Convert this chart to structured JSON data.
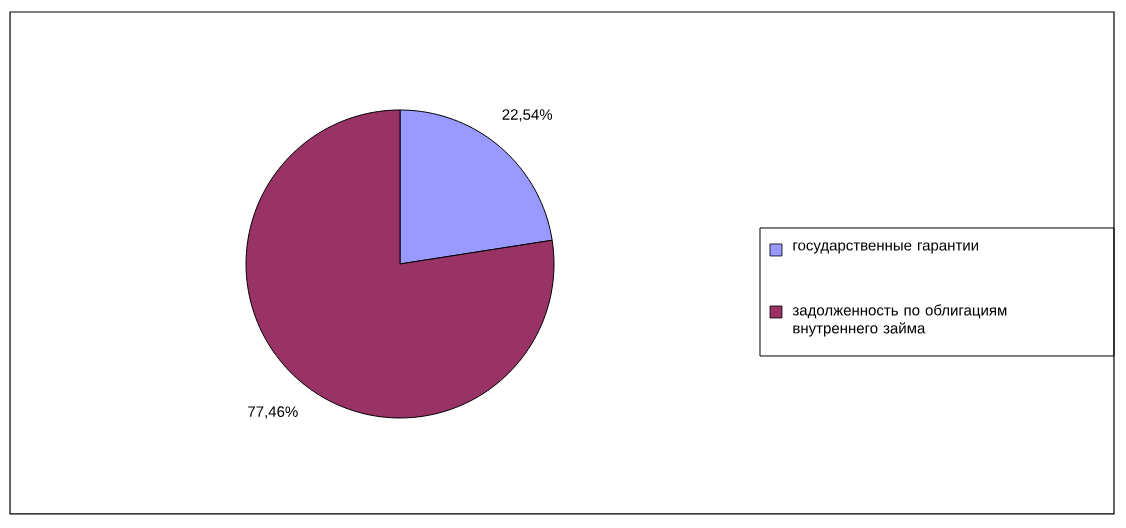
{
  "chart_data": {
    "type": "pie",
    "categories": [
      "государственные гарантии",
      "задолженность по облигациям внутреннего займа"
    ],
    "values": [
      22.54,
      77.46
    ],
    "colors": [
      "#9999ff",
      "#993366"
    ],
    "value_labels": [
      "22,54%",
      "77,46%"
    ],
    "legend": "right"
  }
}
